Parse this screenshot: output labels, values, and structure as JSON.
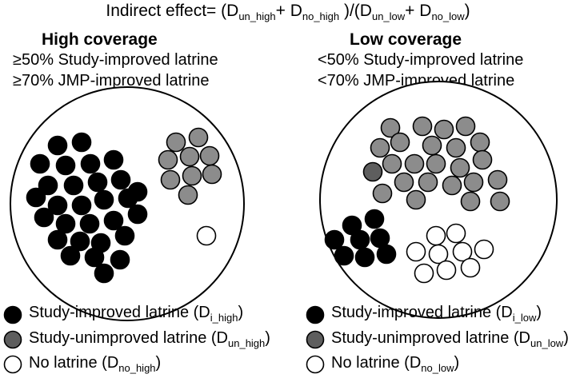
{
  "formula": {
    "lead": "Indirect effect= (D",
    "sub1": "un_high",
    "plus1": "+ D",
    "sub2": "no_high",
    "mid": " )/(D",
    "sub3": "un_low",
    "plus2": "+ D",
    "sub4": "no_low",
    "close": ")"
  },
  "high": {
    "title": "High coverage",
    "criteria": [
      "≥50% Study-improved latrine",
      "≥70% JMP-improved latrine"
    ],
    "counts": {
      "improved": 29,
      "unimproved": 9,
      "none": 1
    }
  },
  "low": {
    "title": "Low coverage",
    "criteria": [
      "<50% Study-improved latrine",
      "<70% JMP-improved latrine"
    ],
    "counts": {
      "improved": 8,
      "unimproved": 23,
      "none": 9
    }
  },
  "legend_left": [
    {
      "base": "Study-improved latrine (D",
      "sub": "i_high",
      "close": ")"
    },
    {
      "base": "Study-unimproved latrine (D",
      "sub": "un_high",
      "close": ")"
    },
    {
      "base": "No latrine (D",
      "sub": "no_high",
      "close": ")"
    }
  ],
  "legend_right": [
    {
      "base": "Study-improved latrine (D",
      "sub": "i_low",
      "close": ")"
    },
    {
      "base": "Study-unimproved latrine (D",
      "sub": "un_low",
      "close": ")"
    },
    {
      "base": "No latrine (D",
      "sub": "no_low",
      "close": ")"
    }
  ],
  "colors": {
    "improved": "#000000",
    "unimproved": "#8c8c8c",
    "unimproved_dark": "#5e5e5e",
    "none": "#ffffff",
    "outline": "#000000"
  }
}
